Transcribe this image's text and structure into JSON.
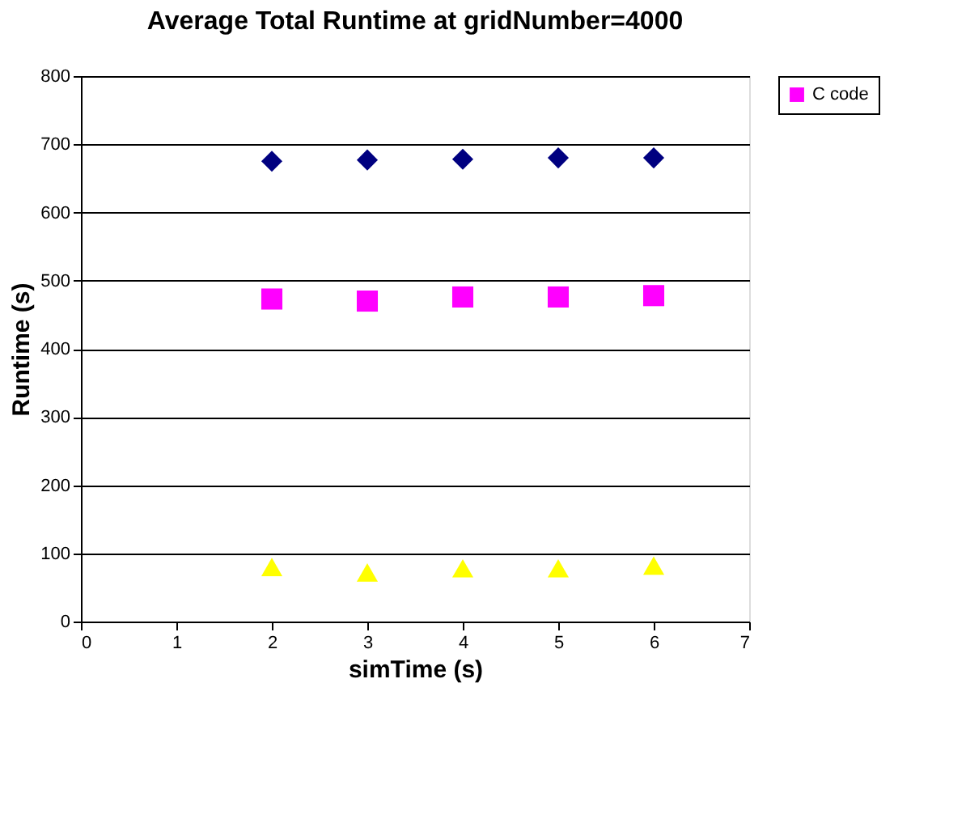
{
  "chart_data": {
    "type": "scatter",
    "title": "Average Total Runtime at gridNumber=4000",
    "xlabel": "simTime (s)",
    "ylabel": "Runtime (s)",
    "x": [
      2,
      3,
      4,
      5,
      6
    ],
    "series": [
      {
        "color": "#000080",
        "marker": "diamond",
        "values": [
          675,
          677,
          678,
          680,
          680
        ]
      },
      {
        "name": "C code",
        "color": "#ff00ff",
        "marker": "square",
        "values": [
          473,
          470,
          476,
          476,
          478
        ]
      },
      {
        "color": "#ffff00",
        "marker": "triangle",
        "values": [
          80,
          72,
          78,
          78,
          82
        ]
      }
    ],
    "xlim": [
      0,
      7
    ],
    "xticks": [
      0,
      1,
      2,
      3,
      4,
      5,
      6,
      7
    ],
    "ylim": [
      0,
      800
    ],
    "yticks": [
      0,
      100,
      200,
      300,
      400,
      500,
      600,
      700,
      800
    ],
    "grid": "y",
    "legend": "right"
  }
}
